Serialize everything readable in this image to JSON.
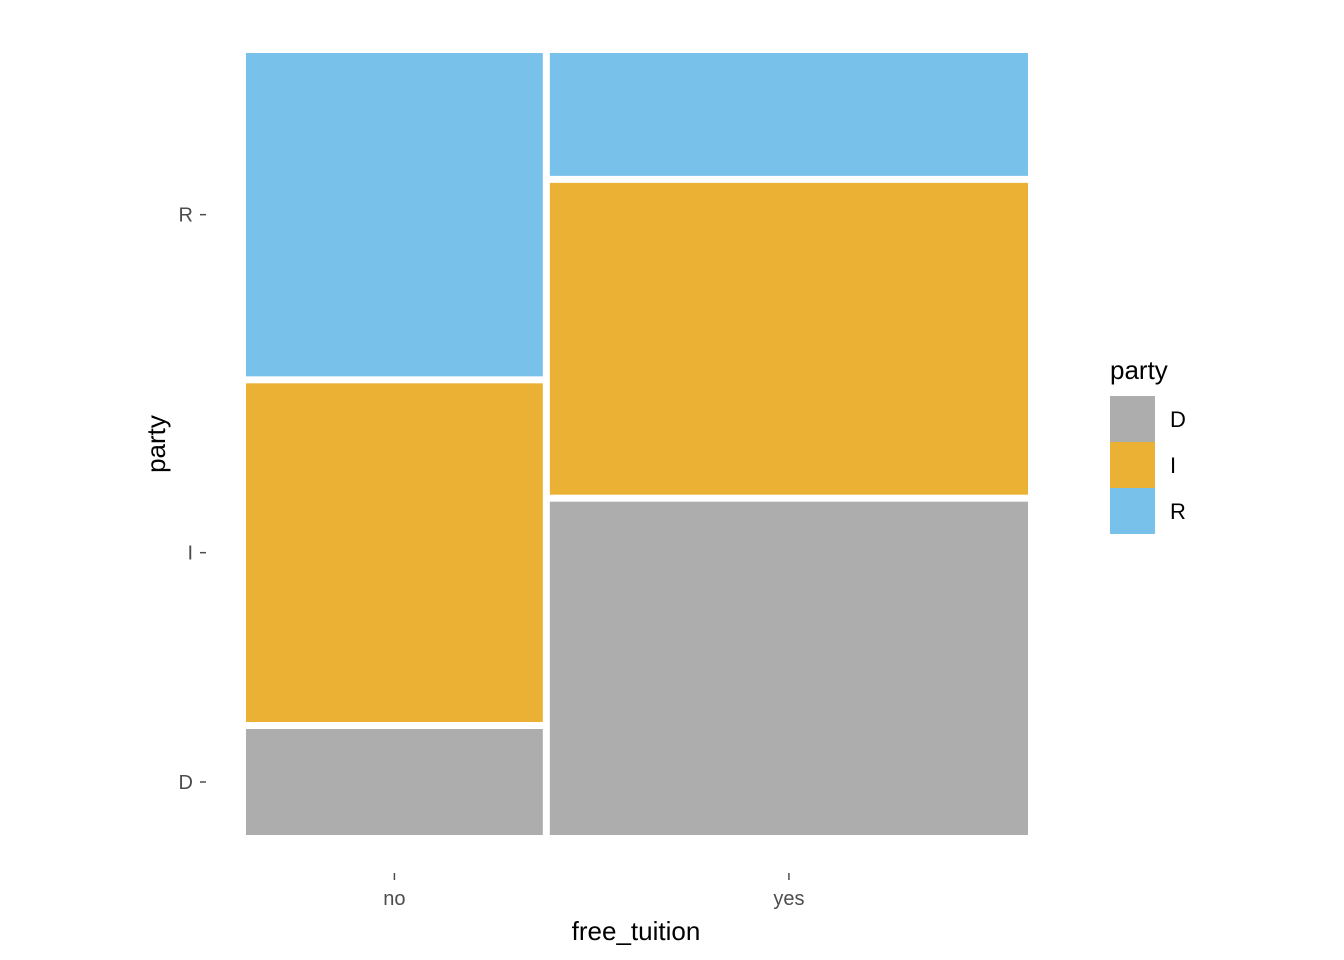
{
  "chart_data": {
    "type": "mosaic",
    "title": "",
    "xlabel": "free_tuition",
    "ylabel": "party",
    "x_categories": [
      "no",
      "yes"
    ],
    "x_proportions": [
      0.383,
      0.617
    ],
    "fill_categories": [
      "D",
      "I",
      "R"
    ],
    "colors": {
      "D": "#ADADAD",
      "I": "#EBB134",
      "R": "#78C1EB"
    },
    "y_tick_labels": [
      "D",
      "I",
      "R"
    ],
    "conditional_proportions": {
      "no": {
        "D": 0.138,
        "I": 0.441,
        "R": 0.421
      },
      "yes": {
        "D": 0.434,
        "I": 0.406,
        "R": 0.16
      }
    },
    "legend": {
      "title": "party",
      "entries": [
        "D",
        "I",
        "R"
      ],
      "position": "right"
    },
    "grid": false
  }
}
